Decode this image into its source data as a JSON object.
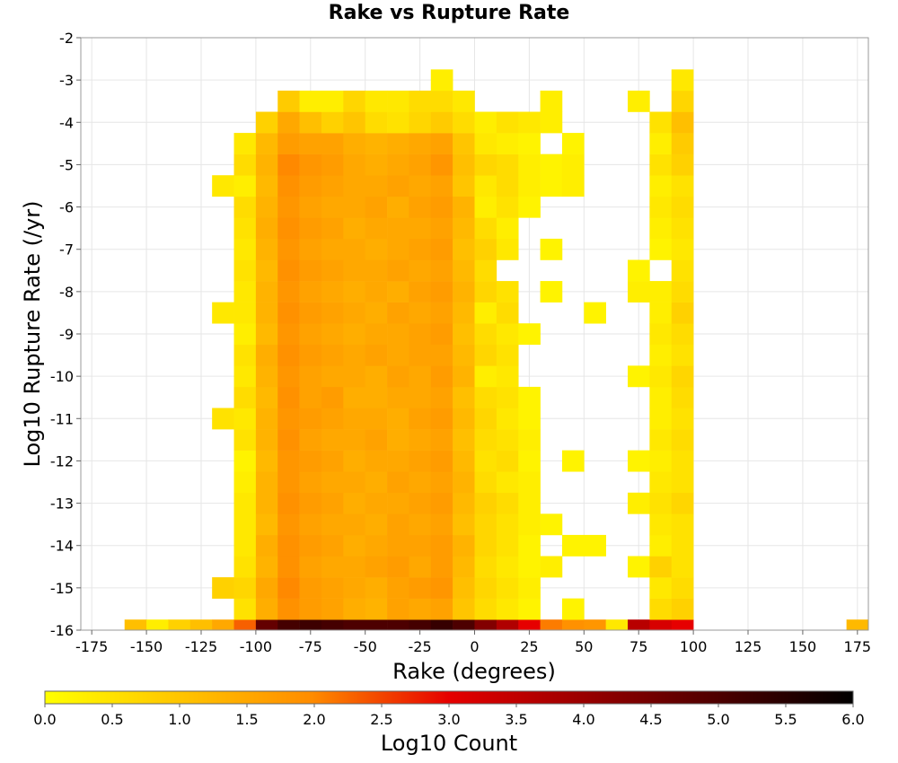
{
  "chart_data": {
    "type": "heatmap",
    "title": "Rake vs Rupture Rate",
    "xlabel": "Rake (degrees)",
    "ylabel": "Log10 Rupture Rate (/yr)",
    "xlim": [
      -180,
      180
    ],
    "ylim": [
      -16,
      -2
    ],
    "x_ticks": [
      -175,
      -150,
      -125,
      -100,
      -75,
      -50,
      -25,
      0,
      25,
      50,
      75,
      100,
      125,
      150,
      175
    ],
    "y_ticks": [
      -2,
      -3,
      -4,
      -5,
      -6,
      -7,
      -8,
      -9,
      -10,
      -11,
      -12,
      -13,
      -14,
      -15,
      -16
    ],
    "grid": true,
    "bin_width_x": 10,
    "bin_height_y": 0.5,
    "x_bin_centers": [
      -155,
      -145,
      -135,
      -125,
      -115,
      -105,
      -95,
      -85,
      -75,
      -65,
      -55,
      -45,
      -35,
      -25,
      -15,
      -5,
      5,
      15,
      25,
      35,
      45,
      55,
      65,
      75,
      85,
      95,
      175
    ],
    "y_bin_centers": [
      -16,
      -15.5,
      -15,
      -14.5,
      -14,
      -13.5,
      -13,
      -12.5,
      -12,
      -11.5,
      -11,
      -10.5,
      -10,
      -9.5,
      -9,
      -8.5,
      -8,
      -7.5,
      -7,
      -6.5,
      -6,
      -5.5,
      -5,
      -4.5,
      -4,
      -3.5,
      -3
    ],
    "log10_count_rows": [
      [
        1.1,
        0.3,
        0.8,
        1.1,
        1.5,
        2.3,
        4.7,
        5.1,
        5.2,
        5.1,
        5.0,
        5.0,
        5.0,
        5.1,
        5.3,
        5.0,
        4.3,
        3.7,
        3.0,
        2.1,
        1.9,
        1.8,
        0.4,
        3.6,
        3.2,
        3.0,
        1.2
      ],
      [
        null,
        null,
        null,
        null,
        null,
        0.5,
        1.4,
        1.9,
        1.7,
        1.6,
        1.4,
        1.3,
        1.6,
        1.5,
        1.6,
        1.0,
        0.6,
        0.4,
        0.2,
        null,
        0.2,
        null,
        null,
        null,
        0.6,
        0.8,
        null
      ],
      [
        null,
        null,
        null,
        null,
        0.8,
        0.7,
        1.5,
        2.0,
        1.7,
        1.6,
        1.5,
        1.4,
        1.6,
        1.7,
        1.8,
        1.1,
        0.7,
        0.5,
        0.3,
        null,
        null,
        null,
        null,
        null,
        0.4,
        0.6,
        null
      ],
      [
        null,
        null,
        null,
        null,
        null,
        0.5,
        1.3,
        1.9,
        1.6,
        1.5,
        1.5,
        1.6,
        1.7,
        1.5,
        1.7,
        1.2,
        0.6,
        0.4,
        0.2,
        0.3,
        null,
        null,
        null,
        0.2,
        0.8,
        0.5,
        null
      ],
      [
        null,
        null,
        null,
        null,
        null,
        0.4,
        1.4,
        1.9,
        1.7,
        1.6,
        1.4,
        1.5,
        1.6,
        1.6,
        1.7,
        1.3,
        0.7,
        0.5,
        0.2,
        null,
        0.2,
        0.2,
        null,
        null,
        0.3,
        0.5,
        null
      ],
      [
        null,
        null,
        null,
        null,
        null,
        0.4,
        1.2,
        1.8,
        1.6,
        1.5,
        1.5,
        1.4,
        1.6,
        1.5,
        1.6,
        1.1,
        0.7,
        0.5,
        0.3,
        0.2,
        null,
        null,
        null,
        null,
        0.4,
        0.5,
        null
      ],
      [
        null,
        null,
        null,
        null,
        null,
        0.4,
        1.3,
        1.9,
        1.7,
        1.6,
        1.4,
        1.5,
        1.5,
        1.6,
        1.7,
        1.2,
        0.8,
        0.6,
        0.3,
        null,
        null,
        null,
        null,
        0.3,
        0.5,
        0.7,
        null
      ],
      [
        null,
        null,
        null,
        null,
        null,
        0.3,
        1.3,
        1.8,
        1.6,
        1.5,
        1.5,
        1.4,
        1.6,
        1.5,
        1.6,
        1.3,
        0.6,
        0.4,
        0.3,
        null,
        null,
        null,
        null,
        null,
        0.4,
        0.5,
        null
      ],
      [
        null,
        null,
        null,
        null,
        null,
        0.2,
        1.2,
        1.8,
        1.7,
        1.6,
        1.4,
        1.5,
        1.5,
        1.6,
        1.7,
        1.2,
        0.5,
        0.6,
        0.2,
        null,
        0.2,
        null,
        null,
        0.2,
        0.3,
        0.5,
        null
      ],
      [
        null,
        null,
        null,
        null,
        null,
        0.5,
        1.3,
        1.9,
        1.6,
        1.5,
        1.5,
        1.6,
        1.4,
        1.5,
        1.6,
        1.1,
        0.6,
        0.5,
        0.3,
        null,
        null,
        null,
        null,
        null,
        0.4,
        0.6,
        null
      ],
      [
        null,
        null,
        null,
        null,
        0.5,
        0.4,
        1.3,
        1.8,
        1.7,
        1.6,
        1.5,
        1.5,
        1.4,
        1.6,
        1.7,
        1.2,
        0.7,
        0.4,
        0.2,
        null,
        null,
        null,
        null,
        null,
        0.3,
        0.5,
        null
      ],
      [
        null,
        null,
        null,
        null,
        null,
        0.6,
        1.2,
        1.9,
        1.6,
        1.7,
        1.4,
        1.4,
        1.5,
        1.5,
        1.6,
        1.1,
        0.6,
        0.5,
        0.2,
        null,
        null,
        null,
        null,
        null,
        0.3,
        0.6,
        null
      ],
      [
        null,
        null,
        null,
        null,
        null,
        0.4,
        1.3,
        1.8,
        1.6,
        1.5,
        1.5,
        1.4,
        1.6,
        1.5,
        1.7,
        1.3,
        0.3,
        0.4,
        null,
        null,
        null,
        null,
        null,
        0.2,
        0.4,
        0.7,
        null
      ],
      [
        null,
        null,
        null,
        null,
        null,
        0.5,
        1.4,
        1.9,
        1.7,
        1.6,
        1.5,
        1.6,
        1.5,
        1.6,
        1.6,
        1.2,
        0.7,
        0.5,
        null,
        null,
        null,
        null,
        null,
        null,
        0.3,
        0.5,
        null
      ],
      [
        null,
        null,
        null,
        null,
        null,
        0.3,
        1.2,
        1.8,
        1.6,
        1.5,
        1.4,
        1.5,
        1.5,
        1.6,
        1.7,
        1.1,
        0.6,
        0.4,
        0.2,
        null,
        null,
        null,
        null,
        null,
        0.4,
        0.6,
        null
      ],
      [
        null,
        null,
        null,
        null,
        0.4,
        0.4,
        1.3,
        1.9,
        1.7,
        1.6,
        1.5,
        1.4,
        1.6,
        1.5,
        1.6,
        1.2,
        0.3,
        0.6,
        null,
        null,
        null,
        0.2,
        null,
        null,
        0.3,
        0.8,
        null
      ],
      [
        null,
        null,
        null,
        null,
        null,
        0.4,
        1.3,
        1.8,
        1.6,
        1.5,
        1.4,
        1.5,
        1.4,
        1.6,
        1.7,
        1.3,
        0.7,
        0.5,
        null,
        0.2,
        null,
        null,
        null,
        0.3,
        0.3,
        0.6,
        null
      ],
      [
        null,
        null,
        null,
        null,
        null,
        0.5,
        1.2,
        1.9,
        1.7,
        1.6,
        1.5,
        1.5,
        1.6,
        1.5,
        1.6,
        1.2,
        0.6,
        null,
        null,
        null,
        null,
        null,
        null,
        0.2,
        null,
        0.5,
        null
      ],
      [
        null,
        null,
        null,
        null,
        null,
        0.4,
        1.3,
        1.8,
        1.6,
        1.5,
        1.5,
        1.4,
        1.5,
        1.6,
        1.7,
        1.1,
        0.8,
        0.4,
        null,
        0.2,
        null,
        null,
        null,
        null,
        0.2,
        0.4,
        null
      ],
      [
        null,
        null,
        null,
        null,
        null,
        0.5,
        1.4,
        1.9,
        1.7,
        1.6,
        1.4,
        1.5,
        1.5,
        1.5,
        1.6,
        1.2,
        0.6,
        0.3,
        null,
        null,
        null,
        null,
        null,
        null,
        0.3,
        0.5,
        null
      ],
      [
        null,
        null,
        null,
        null,
        null,
        0.6,
        1.3,
        1.8,
        1.6,
        1.5,
        1.5,
        1.6,
        1.4,
        1.6,
        1.7,
        1.3,
        0.3,
        0.5,
        0.2,
        null,
        null,
        null,
        null,
        null,
        0.4,
        0.6,
        null
      ],
      [
        null,
        null,
        null,
        null,
        0.4,
        0.3,
        1.2,
        1.9,
        1.7,
        1.6,
        1.5,
        1.5,
        1.6,
        1.5,
        1.6,
        1.0,
        0.4,
        0.6,
        0.3,
        0.2,
        0.3,
        null,
        null,
        null,
        0.3,
        0.5,
        null
      ],
      [
        null,
        null,
        null,
        null,
        null,
        0.6,
        1.3,
        2.0,
        1.8,
        1.7,
        1.5,
        1.4,
        1.5,
        1.6,
        1.8,
        1.1,
        0.7,
        0.6,
        0.3,
        0.2,
        0.3,
        null,
        null,
        null,
        0.5,
        0.8,
        null
      ],
      [
        null,
        null,
        null,
        null,
        null,
        0.4,
        1.2,
        1.7,
        1.6,
        1.6,
        1.4,
        1.3,
        1.4,
        1.5,
        1.6,
        1.0,
        0.4,
        0.3,
        0.2,
        null,
        0.2,
        null,
        null,
        null,
        0.3,
        0.9,
        null
      ],
      [
        null,
        null,
        null,
        null,
        null,
        null,
        0.8,
        1.5,
        1.1,
        0.8,
        1.0,
        0.6,
        0.5,
        0.7,
        0.9,
        0.6,
        0.3,
        0.5,
        0.4,
        0.3,
        null,
        null,
        null,
        null,
        0.5,
        1.1,
        null
      ],
      [
        null,
        null,
        null,
        null,
        null,
        null,
        null,
        0.9,
        0.3,
        0.3,
        0.7,
        0.4,
        0.4,
        0.6,
        0.6,
        0.4,
        null,
        null,
        null,
        0.3,
        null,
        null,
        null,
        0.3,
        null,
        0.7,
        null
      ],
      [
        null,
        null,
        null,
        null,
        null,
        null,
        null,
        null,
        null,
        null,
        null,
        null,
        null,
        null,
        0.3,
        null,
        null,
        null,
        null,
        null,
        null,
        null,
        null,
        null,
        null,
        0.4,
        null
      ]
    ],
    "colorbar": {
      "label": "Log10 Count",
      "min": 0.0,
      "max": 6.0,
      "ticks": [
        "0.0",
        "0.5",
        "1.0",
        "1.5",
        "2.0",
        "2.5",
        "3.0",
        "3.5",
        "4.0",
        "4.5",
        "5.0",
        "5.5",
        "6.0"
      ],
      "colors": [
        "#ffff00",
        "#ff8c00",
        "#e60000",
        "#000000"
      ]
    }
  }
}
